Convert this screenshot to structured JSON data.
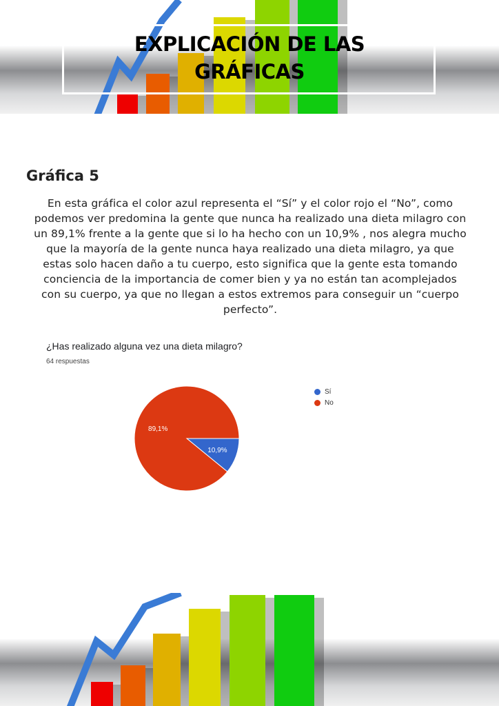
{
  "header": {
    "title_line1": "EXPLICACIÓN DE LAS",
    "title_line2": "GRÁFICAS"
  },
  "section": {
    "heading": "Gráfica 5",
    "paragraph": "En esta gráfica el color azul representa el “Sí” y el color rojo el “No”, como podemos ver predomina la gente que nunca ha realizado una dieta milagro con un 89,1% frente a la gente que si lo ha hecho con un 10,9% , nos alegra mucho que la mayoría de la gente nunca haya realizado una dieta milagro, ya que estas solo hacen daño a tu cuerpo, esto significa que la gente esta tomando conciencia de la importancia de comer bien y ya no están tan acomplejados con su cuerpo, ya que no llegan a estos extremos para conseguir un “cuerpo perfecto”."
  },
  "chart_data": {
    "type": "pie",
    "title": "¿Has realizado alguna vez una dieta milagro?",
    "subtitle": "64 respuestas",
    "legend_position": "right",
    "slices": [
      {
        "name": "Sí",
        "value": 10.9,
        "label": "10,9%",
        "color": "#3366cc"
      },
      {
        "name": "No",
        "value": 89.1,
        "label": "89,1%",
        "color": "#dc3912"
      }
    ]
  }
}
